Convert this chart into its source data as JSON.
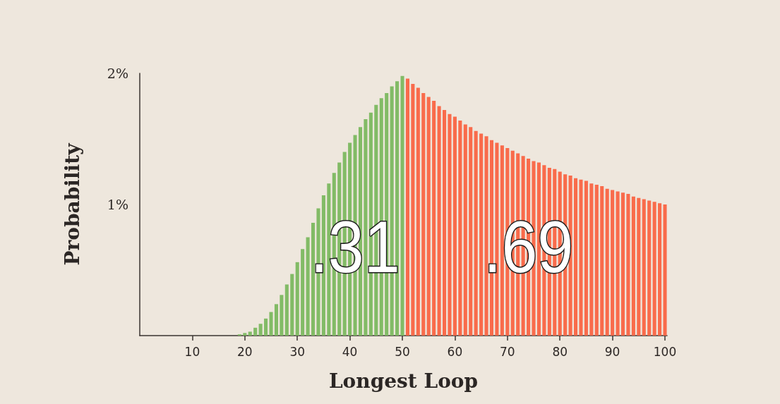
{
  "chart_data": {
    "type": "bar",
    "xlabel": "Longest Loop",
    "ylabel": "Probability",
    "series": [
      {
        "color": "#82bb66",
        "x": [
          19,
          20,
          21,
          22,
          23,
          24,
          25,
          26,
          27,
          28,
          29,
          30,
          31,
          32,
          33,
          34,
          35,
          36,
          37,
          38,
          39,
          40,
          41,
          42,
          43,
          44,
          45,
          46,
          47,
          48,
          49,
          50
        ],
        "values": [
          0.01,
          0.02,
          0.03,
          0.06,
          0.09,
          0.13,
          0.18,
          0.24,
          0.31,
          0.39,
          0.47,
          0.56,
          0.66,
          0.75,
          0.86,
          0.97,
          1.07,
          1.16,
          1.24,
          1.32,
          1.4,
          1.47,
          1.53,
          1.59,
          1.65,
          1.7,
          1.76,
          1.81,
          1.85,
          1.9,
          1.94,
          1.98
        ]
      },
      {
        "color": "#f96b4b",
        "x": [
          51,
          52,
          53,
          54,
          55,
          56,
          57,
          58,
          59,
          60,
          61,
          62,
          63,
          64,
          65,
          66,
          67,
          68,
          69,
          70,
          71,
          72,
          73,
          74,
          75,
          76,
          77,
          78,
          79,
          80,
          81,
          82,
          83,
          84,
          85,
          86,
          87,
          88,
          89,
          90,
          91,
          92,
          93,
          94,
          95,
          96,
          97,
          98,
          99,
          100
        ],
        "values": [
          1.96,
          1.92,
          1.89,
          1.85,
          1.82,
          1.79,
          1.75,
          1.72,
          1.69,
          1.67,
          1.64,
          1.61,
          1.59,
          1.56,
          1.54,
          1.52,
          1.49,
          1.47,
          1.45,
          1.43,
          1.41,
          1.39,
          1.37,
          1.35,
          1.33,
          1.32,
          1.3,
          1.28,
          1.27,
          1.25,
          1.23,
          1.22,
          1.2,
          1.19,
          1.18,
          1.16,
          1.15,
          1.14,
          1.12,
          1.11,
          1.1,
          1.09,
          1.08,
          1.06,
          1.05,
          1.04,
          1.03,
          1.02,
          1.01,
          1.0
        ]
      }
    ],
    "xlim": [
      0,
      100.4
    ],
    "xticks": [
      10,
      20,
      30,
      40,
      50,
      60,
      70,
      80,
      90,
      100
    ],
    "ylim": [
      0,
      2
    ],
    "yticks": [
      {
        "value": 1,
        "label": "1%"
      },
      {
        "value": 2,
        "label": "2%"
      }
    ],
    "grid": false,
    "annotations": [
      {
        "text": ".31",
        "x": 41,
        "y": 0.68
      },
      {
        "text": ".69",
        "x": 74,
        "y": 0.68
      }
    ]
  }
}
